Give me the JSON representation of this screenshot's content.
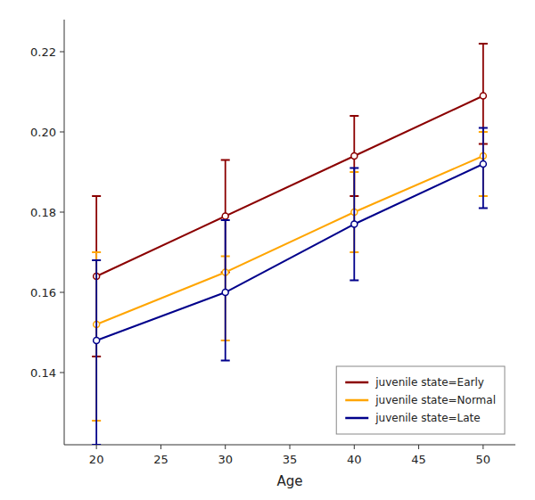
{
  "chart_data": {
    "type": "line",
    "x": [
      20,
      30,
      40,
      50
    ],
    "xlabel": "Age",
    "xlim": [
      17.5,
      52.5
    ],
    "ylim": [
      0.122,
      0.228
    ],
    "xticks": [
      20,
      25,
      30,
      35,
      40,
      45,
      50
    ],
    "yticks": [
      0.14,
      0.16,
      0.18,
      {
        "value": 0.2,
        "label": "0.20"
      },
      0.22
    ],
    "grid": false,
    "legend": "lower right",
    "marker": "circle",
    "series": [
      {
        "name": "juvenile state=Early",
        "color": "#8B0000",
        "values": [
          0.164,
          0.179,
          0.194,
          0.209
        ],
        "upper": [
          0.184,
          0.193,
          0.204,
          0.222
        ],
        "lower": [
          0.144,
          0.165,
          0.184,
          0.197
        ]
      },
      {
        "name": "juvenile state=Normal",
        "color": "#FFA500",
        "values": [
          0.152,
          0.165,
          0.18,
          0.194
        ],
        "upper": [
          0.17,
          0.169,
          0.19,
          0.2
        ],
        "lower": [
          0.128,
          0.148,
          0.17,
          0.184
        ]
      },
      {
        "name": "juvenile state=Late",
        "color": "#00008B",
        "values": [
          0.148,
          0.16,
          0.177,
          0.192
        ],
        "upper": [
          0.168,
          0.178,
          0.191,
          0.201
        ],
        "lower": [
          0.122,
          0.143,
          0.163,
          0.181
        ]
      }
    ]
  }
}
